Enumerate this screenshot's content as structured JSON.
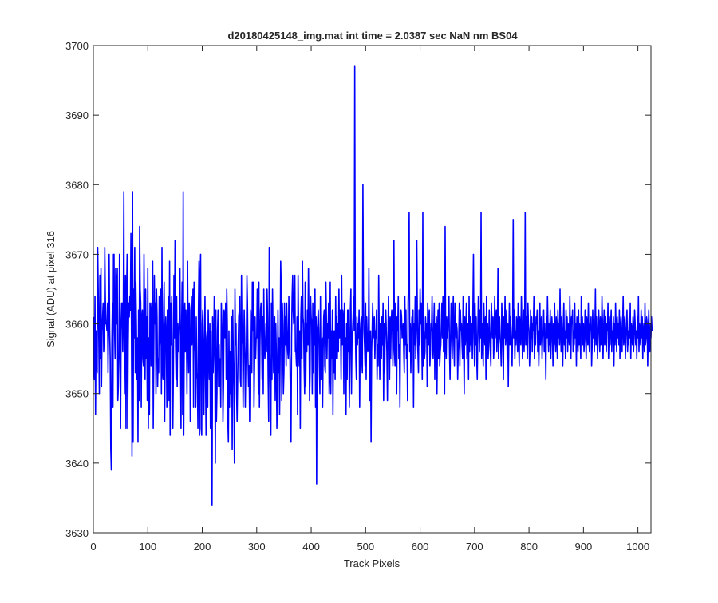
{
  "chart_data": {
    "type": "line",
    "title": "d20180425148_img.mat int time = 2.0387 sec  NaN nm BS04",
    "xlabel": "Track Pixels",
    "ylabel": "Signal (ADU) at pixel 316",
    "xlim": [
      0,
      1024
    ],
    "ylim": [
      3630,
      3700
    ],
    "xticks": [
      0,
      100,
      200,
      300,
      400,
      500,
      600,
      700,
      800,
      900,
      1000
    ],
    "yticks": [
      3630,
      3640,
      3650,
      3660,
      3670,
      3680,
      3690,
      3700
    ],
    "grid": false,
    "legend": "none",
    "line_color": "#0000ff",
    "series": [
      {
        "x_start": 1,
        "x_step": 1,
        "values": [
          3661,
          3652,
          3664,
          3647,
          3659,
          3656,
          3653,
          3671,
          3665,
          3658,
          3650,
          3667,
          3655,
          3668,
          3651,
          3659,
          3661,
          3663,
          3656,
          3658,
          3671,
          3664,
          3660,
          3660,
          3659,
          3663,
          3653,
          3660,
          3670,
          3659,
          3655,
          3642,
          3639,
          3657,
          3663,
          3648,
          3670,
          3670,
          3659,
          3655,
          3668,
          3666,
          3660,
          3668,
          3649,
          3651,
          3655,
          3670,
          3661,
          3645,
          3659,
          3663,
          3663,
          3656,
          3662,
          3679,
          3650,
          3660,
          3667,
          3645,
          3664,
          3670,
          3645,
          3657,
          3663,
          3661,
          3664,
          3662,
          3673,
          3659,
          3641,
          3679,
          3643,
          3665,
          3658,
          3671,
          3653,
          3666,
          3660,
          3652,
          3658,
          3643,
          3662,
          3649,
          3674,
          3665,
          3663,
          3648,
          3661,
          3662,
          3655,
          3654,
          3670,
          3660,
          3652,
          3665,
          3655,
          3661,
          3649,
          3668,
          3645,
          3658,
          3647,
          3663,
          3662,
          3654,
          3663,
          3658,
          3669,
          3645,
          3656,
          3667,
          3660,
          3663,
          3650,
          3665,
          3661,
          3651,
          3655,
          3653,
          3664,
          3657,
          3659,
          3665,
          3650,
          3671,
          3653,
          3652,
          3660,
          3666,
          3646,
          3658,
          3661,
          3658,
          3648,
          3662,
          3653,
          3664,
          3649,
          3669,
          3644,
          3663,
          3657,
          3664,
          3655,
          3645,
          3653,
          3667,
          3658,
          3672,
          3657,
          3652,
          3664,
          3651,
          3660,
          3656,
          3658,
          3661,
          3668,
          3657,
          3645,
          3659,
          3666,
          3647,
          3679,
          3644,
          3659,
          3663,
          3656,
          3662,
          3658,
          3650,
          3669,
          3658,
          3653,
          3663,
          3662,
          3646,
          3654,
          3664,
          3657,
          3660,
          3665,
          3648,
          3666,
          3658,
          3656,
          3648,
          3661,
          3653,
          3652,
          3645,
          3662,
          3669,
          3644,
          3666,
          3670,
          3645,
          3644,
          3660,
          3662,
          3656,
          3647,
          3657,
          3664,
          3652,
          3644,
          3658,
          3659,
          3648,
          3662,
          3656,
          3652,
          3660,
          3645,
          3659,
          3647,
          3634,
          3661,
          3653,
          3656,
          3664,
          3659,
          3640,
          3662,
          3646,
          3650,
          3659,
          3662,
          3651,
          3657,
          3651,
          3655,
          3648,
          3663,
          3660,
          3657,
          3646,
          3651,
          3662,
          3661,
          3658,
          3663,
          3652,
          3665,
          3660,
          3646,
          3643,
          3659,
          3648,
          3656,
          3650,
          3659,
          3661,
          3642,
          3662,
          3655,
          3651,
          3640,
          3665,
          3657,
          3660,
          3650,
          3646,
          3652,
          3657,
          3661,
          3662,
          3664,
          3652,
          3651,
          3667,
          3658,
          3657,
          3648,
          3656,
          3662,
          3658,
          3648,
          3654,
          3657,
          3667,
          3663,
          3655,
          3651,
          3654,
          3646,
          3656,
          3662,
          3660,
          3653,
          3666,
          3659,
          3666,
          3648,
          3654,
          3661,
          3655,
          3658,
          3658,
          3665,
          3660,
          3650,
          3666,
          3648,
          3657,
          3662,
          3663,
          3658,
          3652,
          3661,
          3650,
          3665,
          3657,
          3655,
          3657,
          3660,
          3656,
          3665,
          3661,
          3652,
          3646,
          3671,
          3656,
          3650,
          3644,
          3663,
          3652,
          3665,
          3659,
          3653,
          3654,
          3661,
          3649,
          3660,
          3656,
          3645,
          3650,
          3662,
          3653,
          3658,
          3647,
          3655,
          3669,
          3665,
          3649,
          3663,
          3660,
          3650,
          3653,
          3663,
          3657,
          3661,
          3654,
          3663,
          3659,
          3656,
          3655,
          3664,
          3657,
          3655,
          3648,
          3643,
          3658,
          3664,
          3667,
          3662,
          3660,
          3661,
          3667,
          3656,
          3656,
          3654,
          3661,
          3647,
          3667,
          3658,
          3654,
          3659,
          3645,
          3661,
          3664,
          3655,
          3669,
          3661,
          3660,
          3654,
          3650,
          3666,
          3651,
          3660,
          3656,
          3662,
          3657,
          3668,
          3660,
          3649,
          3653,
          3664,
          3661,
          3660,
          3650,
          3663,
          3653,
          3661,
          3657,
          3665,
          3648,
          3661,
          3637,
          3659,
          3660,
          3662,
          3659,
          3654,
          3650,
          3664,
          3652,
          3655,
          3658,
          3648,
          3656,
          3661,
          3662,
          3654,
          3653,
          3666,
          3661,
          3655,
          3660,
          3658,
          3663,
          3650,
          3653,
          3666,
          3650,
          3659,
          3655,
          3662,
          3647,
          3659,
          3653,
          3659,
          3652,
          3664,
          3655,
          3661,
          3655,
          3660,
          3656,
          3665,
          3658,
          3662,
          3660,
          3652,
          3667,
          3657,
          3662,
          3661,
          3650,
          3663,
          3654,
          3658,
          3647,
          3660,
          3652,
          3662,
          3656,
          3662,
          3648,
          3654,
          3662,
          3665,
          3650,
          3658,
          3659,
          3661,
          3664,
          3659,
          3697,
          3660,
          3655,
          3652,
          3661,
          3657,
          3660,
          3658,
          3662,
          3648,
          3658,
          3660,
          3661,
          3655,
          3653,
          3680,
          3664,
          3659,
          3657,
          3654,
          3663,
          3652,
          3661,
          3658,
          3656,
          3657,
          3668,
          3654,
          3649,
          3659,
          3643,
          3656,
          3659,
          3663,
          3658,
          3660,
          3661,
          3655,
          3659,
          3658,
          3662,
          3652,
          3657,
          3654,
          3667,
          3658,
          3652,
          3660,
          3659,
          3655,
          3661,
          3657,
          3663,
          3649,
          3660,
          3653,
          3660,
          3662,
          3659,
          3656,
          3649,
          3658,
          3664,
          3658,
          3652,
          3661,
          3655,
          3660,
          3662,
          3660,
          3654,
          3658,
          3672,
          3656,
          3654,
          3663,
          3660,
          3650,
          3661,
          3659,
          3664,
          3655,
          3657,
          3648,
          3659,
          3662,
          3661,
          3658,
          3659,
          3660,
          3656,
          3653,
          3664,
          3657,
          3662,
          3655,
          3657,
          3649,
          3663,
          3667,
          3676,
          3656,
          3660,
          3653,
          3658,
          3661,
          3659,
          3662,
          3648,
          3660,
          3657,
          3664,
          3655,
          3659,
          3672,
          3661,
          3656,
          3653,
          3662,
          3657,
          3665,
          3660,
          3663,
          3658,
          3652,
          3676,
          3654,
          3659,
          3655,
          3656,
          3661,
          3658,
          3660,
          3651,
          3663,
          3660,
          3657,
          3662,
          3654,
          3656,
          3660,
          3659,
          3664,
          3657,
          3655,
          3659,
          3663,
          3652,
          3660,
          3658,
          3661,
          3650,
          3658,
          3662,
          3655,
          3663,
          3654,
          3656,
          3657,
          3660,
          3663,
          3658,
          3664,
          3656,
          3660,
          3650,
          3674,
          3657,
          3655,
          3661,
          3658,
          3659,
          3662,
          3664,
          3656,
          3652,
          3658,
          3663,
          3659,
          3655,
          3661,
          3664,
          3657,
          3654,
          3663,
          3661,
          3658,
          3660,
          3659,
          3652,
          3656,
          3658,
          3663,
          3654,
          3662,
          3659,
          3660,
          3657,
          3655,
          3664,
          3658,
          3650,
          3661,
          3657,
          3659,
          3663,
          3655,
          3658,
          3660,
          3652,
          3664,
          3656,
          3661,
          3657,
          3659,
          3660,
          3655,
          3662,
          3670,
          3658,
          3654,
          3663,
          3657,
          3661,
          3655,
          3652,
          3659,
          3664,
          3660,
          3656,
          3662,
          3658,
          3676,
          3655,
          3660,
          3658,
          3654,
          3663,
          3659,
          3657,
          3661,
          3652,
          3664,
          3658,
          3660,
          3655,
          3657,
          3662,
          3659,
          3656,
          3654,
          3663,
          3660,
          3658,
          3661,
          3655,
          3657,
          3664,
          3658,
          3660,
          3662,
          3656,
          3659,
          3668,
          3655,
          3659,
          3661,
          3658,
          3657,
          3654,
          3663,
          3660,
          3656,
          3652,
          3661,
          3658,
          3664,
          3657,
          3659,
          3662,
          3655,
          3660,
          3651,
          3658,
          3663,
          3657,
          3661,
          3659,
          3656,
          3654,
          3660,
          3675,
          3658,
          3662,
          3655,
          3659,
          3657,
          3661,
          3660,
          3656,
          3663,
          3658,
          3654,
          3661,
          3659,
          3657,
          3664,
          3660,
          3655,
          3658,
          3662,
          3656,
          3659,
          3676,
          3657,
          3661,
          3658,
          3655,
          3663,
          3660,
          3659,
          3654,
          3657,
          3662,
          3658,
          3661,
          3656,
          3660,
          3659,
          3664,
          3655,
          3658,
          3657,
          3661,
          3660,
          3662,
          3656,
          3659,
          3654,
          3658,
          3663,
          3657,
          3660,
          3661,
          3655,
          3658,
          3659,
          3662,
          3656,
          3660,
          3657,
          3652,
          3661,
          3658,
          3664,
          3659,
          3656,
          3660,
          3657,
          3662,
          3655,
          3658,
          3661,
          3659,
          3654,
          3660,
          3657,
          3663,
          3658,
          3656,
          3661,
          3659,
          3655,
          3662,
          3658,
          3660,
          3657,
          3665,
          3659,
          3656,
          3661,
          3658,
          3654,
          3660,
          3663,
          3657,
          3659,
          3655,
          3662,
          3658,
          3661,
          3656,
          3660,
          3659,
          3657,
          3664,
          3658,
          3655,
          3661,
          3660,
          3662,
          3656,
          3659,
          3657,
          3663,
          3658,
          3660,
          3654,
          3661,
          3659,
          3656,
          3662,
          3657,
          3660,
          3658,
          3655,
          3664,
          3659,
          3661,
          3657,
          3660,
          3656,
          3658,
          3662,
          3659,
          3655,
          3661,
          3660,
          3657,
          3663,
          3658,
          3656,
          3660,
          3659,
          3661,
          3654,
          3657,
          3662,
          3658,
          3660,
          3656,
          3659,
          3665,
          3657,
          3661,
          3658,
          3655,
          3660,
          3662,
          3659,
          3656,
          3661,
          3657,
          3658,
          3664,
          3660,
          3655,
          3659,
          3662,
          3657,
          3661,
          3658,
          3656,
          3660,
          3659,
          3663,
          3655,
          3658,
          3661,
          3657,
          3660,
          3662,
          3656,
          3659,
          3658,
          3661,
          3654,
          3660,
          3657,
          3663,
          3659,
          3656,
          3661,
          3658,
          3660,
          3657,
          3662,
          3655,
          3659,
          3661,
          3658,
          3656,
          3660,
          3664,
          3657,
          3659,
          3661,
          3655,
          3658,
          3660,
          3662,
          3656,
          3659,
          3657,
          3661,
          3658,
          3663,
          3655,
          3660,
          3659,
          3657,
          3661,
          3656,
          3658,
          3662,
          3660,
          3657,
          3659,
          3655,
          3661,
          3658,
          3664,
          3656,
          3660,
          3659,
          3657,
          3662,
          3658,
          3661,
          3655,
          3659,
          3660,
          3656,
          3663,
          3657,
          3658,
          3661,
          3660,
          3654,
          3659,
          3662,
          3657,
          3656,
          3660,
          3658,
          3661,
          3659
        ]
      }
    ]
  }
}
